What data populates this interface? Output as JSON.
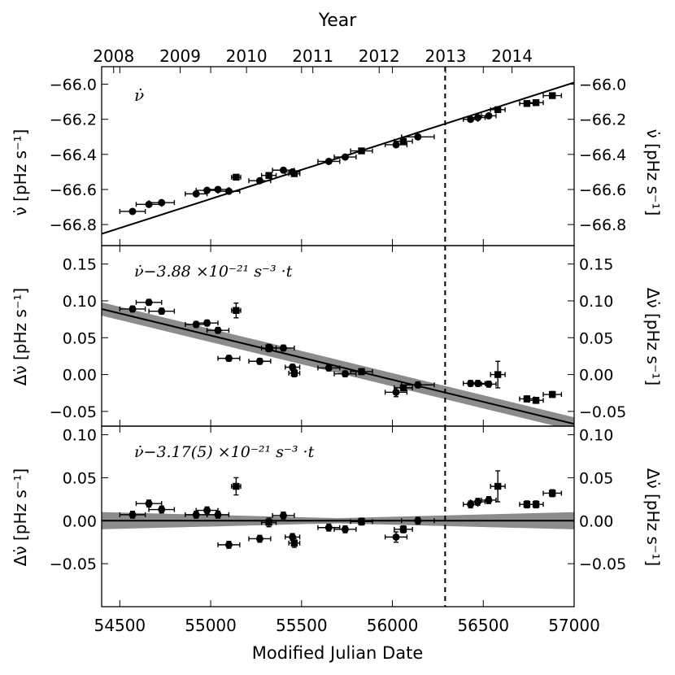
{
  "chart_data": {
    "type": "scatter",
    "top_axis": {
      "label": "Year",
      "tick_labels": [
        "2008",
        "2009",
        "2010",
        "2011",
        "2012",
        "2013",
        "2014"
      ],
      "tick_mjd": [
        54466,
        54832,
        55197,
        55562,
        55927,
        56293,
        56658
      ]
    },
    "x_axis": {
      "label": "Modified Julian Date",
      "range": [
        54400,
        57000
      ],
      "ticks": [
        54500,
        55000,
        55500,
        56000,
        56500,
        57000
      ]
    },
    "vertical_line_mjd": 56290,
    "panels": [
      {
        "name": "nu-dot",
        "annotation": "ν̇",
        "ylabel_left": "ν̇ [pHz s⁻¹]",
        "ylabel_right": "ν̇ [pHz s⁻¹]",
        "ylim": [
          -66.92,
          -65.9
        ],
        "yticks": [
          -66.8,
          -66.6,
          -66.4,
          -66.2,
          -66.0
        ],
        "tick_labels": [
          "−66.8",
          "−66.6",
          "−66.4",
          "−66.2",
          "−66.0"
        ],
        "fit_line": [
          [
            54400,
            -66.853
          ],
          [
            57000,
            -65.99
          ]
        ],
        "band": null,
        "points": [
          {
            "x": 54570,
            "y": -66.725,
            "xerr": 70,
            "yerr": 0.008,
            "m": "o"
          },
          {
            "x": 54660,
            "y": -66.685,
            "xerr": 70,
            "yerr": 0.008,
            "m": "o"
          },
          {
            "x": 54730,
            "y": -66.675,
            "xerr": 70,
            "yerr": 0.008,
            "m": "o"
          },
          {
            "x": 54920,
            "y": -66.625,
            "xerr": 60,
            "yerr": 0.008,
            "m": "o"
          },
          {
            "x": 54980,
            "y": -66.605,
            "xerr": 60,
            "yerr": 0.008,
            "m": "o"
          },
          {
            "x": 55040,
            "y": -66.6,
            "xerr": 60,
            "yerr": 0.008,
            "m": "o"
          },
          {
            "x": 55100,
            "y": -66.61,
            "xerr": 60,
            "yerr": 0.008,
            "m": "o"
          },
          {
            "x": 55140,
            "y": -66.53,
            "xerr": 25,
            "yerr": 0.008,
            "m": "s"
          },
          {
            "x": 55270,
            "y": -66.55,
            "xerr": 60,
            "yerr": 0.008,
            "m": "o"
          },
          {
            "x": 55320,
            "y": -66.52,
            "xerr": 40,
            "yerr": 0.008,
            "m": "s"
          },
          {
            "x": 55400,
            "y": -66.49,
            "xerr": 60,
            "yerr": 0.008,
            "m": "o"
          },
          {
            "x": 55450,
            "y": -66.5,
            "xerr": 40,
            "yerr": 0.008,
            "m": "o"
          },
          {
            "x": 55460,
            "y": -66.51,
            "xerr": 30,
            "yerr": 0.008,
            "m": "s"
          },
          {
            "x": 55650,
            "y": -66.44,
            "xerr": 60,
            "yerr": 0.008,
            "m": "o"
          },
          {
            "x": 55740,
            "y": -66.415,
            "xerr": 60,
            "yerr": 0.008,
            "m": "o"
          },
          {
            "x": 55830,
            "y": -66.38,
            "xerr": 60,
            "yerr": 0.008,
            "m": "s"
          },
          {
            "x": 56020,
            "y": -66.345,
            "xerr": 60,
            "yerr": 0.01,
            "m": "o"
          },
          {
            "x": 56060,
            "y": -66.325,
            "xerr": 50,
            "yerr": 0.008,
            "m": "s"
          },
          {
            "x": 56140,
            "y": -66.3,
            "xerr": 90,
            "yerr": 0.008,
            "m": "o"
          },
          {
            "x": 56430,
            "y": -66.2,
            "xerr": 40,
            "yerr": 0.008,
            "m": "o"
          },
          {
            "x": 56470,
            "y": -66.19,
            "xerr": 40,
            "yerr": 0.008,
            "m": "o"
          },
          {
            "x": 56530,
            "y": -66.18,
            "xerr": 40,
            "yerr": 0.008,
            "m": "o"
          },
          {
            "x": 56580,
            "y": -66.145,
            "xerr": 40,
            "yerr": 0.015,
            "m": "s"
          },
          {
            "x": 56740,
            "y": -66.11,
            "xerr": 40,
            "yerr": 0.008,
            "m": "s"
          },
          {
            "x": 56790,
            "y": -66.105,
            "xerr": 40,
            "yerr": 0.008,
            "m": "s"
          },
          {
            "x": 56880,
            "y": -66.065,
            "xerr": 50,
            "yerr": 0.008,
            "m": "s"
          }
        ]
      },
      {
        "name": "delta-nu-dot-fixed",
        "annotation": "ν̇−3.88 ×10⁻²¹ s⁻³ ·t",
        "ylabel_left": "Δν̇ [pHz s⁻¹]",
        "ylabel_right": "Δν̇ [pHz s⁻¹]",
        "ylim": [
          -0.07,
          0.175
        ],
        "yticks": [
          -0.05,
          0.0,
          0.05,
          0.1,
          0.15
        ],
        "tick_labels": [
          "−0.05",
          "0.00",
          "0.05",
          "0.10",
          "0.15"
        ],
        "fit_line": [
          [
            54400,
            0.089
          ],
          [
            57000,
            -0.067
          ]
        ],
        "band": {
          "x": [
            54400,
            57000
          ],
          "upper": [
            0.098,
            -0.058
          ],
          "lower": [
            0.08,
            -0.076
          ]
        },
        "points": [
          {
            "x": 54570,
            "y": 0.089,
            "xerr": 70,
            "yerr": 0.004,
            "m": "o"
          },
          {
            "x": 54660,
            "y": 0.098,
            "xerr": 70,
            "yerr": 0.004,
            "m": "o"
          },
          {
            "x": 54730,
            "y": 0.086,
            "xerr": 70,
            "yerr": 0.004,
            "m": "o"
          },
          {
            "x": 54920,
            "y": 0.068,
            "xerr": 60,
            "yerr": 0.004,
            "m": "o"
          },
          {
            "x": 54980,
            "y": 0.07,
            "xerr": 60,
            "yerr": 0.004,
            "m": "o"
          },
          {
            "x": 55040,
            "y": 0.06,
            "xerr": 60,
            "yerr": 0.004,
            "m": "o"
          },
          {
            "x": 55100,
            "y": 0.022,
            "xerr": 60,
            "yerr": 0.004,
            "m": "o"
          },
          {
            "x": 55140,
            "y": 0.087,
            "xerr": 25,
            "yerr": 0.01,
            "m": "s"
          },
          {
            "x": 55270,
            "y": 0.018,
            "xerr": 60,
            "yerr": 0.004,
            "m": "o"
          },
          {
            "x": 55320,
            "y": 0.036,
            "xerr": 40,
            "yerr": 0.005,
            "m": "s"
          },
          {
            "x": 55400,
            "y": 0.036,
            "xerr": 60,
            "yerr": 0.004,
            "m": "o"
          },
          {
            "x": 55450,
            "y": 0.01,
            "xerr": 40,
            "yerr": 0.004,
            "m": "o"
          },
          {
            "x": 55460,
            "y": 0.002,
            "xerr": 30,
            "yerr": 0.005,
            "m": "s"
          },
          {
            "x": 55650,
            "y": 0.009,
            "xerr": 60,
            "yerr": 0.004,
            "m": "o"
          },
          {
            "x": 55740,
            "y": 0.001,
            "xerr": 60,
            "yerr": 0.004,
            "m": "o"
          },
          {
            "x": 55830,
            "y": 0.004,
            "xerr": 60,
            "yerr": 0.004,
            "m": "s"
          },
          {
            "x": 56020,
            "y": -0.024,
            "xerr": 60,
            "yerr": 0.006,
            "m": "o"
          },
          {
            "x": 56060,
            "y": -0.018,
            "xerr": 50,
            "yerr": 0.004,
            "m": "s"
          },
          {
            "x": 56140,
            "y": -0.014,
            "xerr": 90,
            "yerr": 0.004,
            "m": "o"
          },
          {
            "x": 56430,
            "y": -0.012,
            "xerr": 40,
            "yerr": 0.004,
            "m": "o"
          },
          {
            "x": 56470,
            "y": -0.012,
            "xerr": 40,
            "yerr": 0.004,
            "m": "o"
          },
          {
            "x": 56530,
            "y": -0.013,
            "xerr": 40,
            "yerr": 0.004,
            "m": "o"
          },
          {
            "x": 56580,
            "y": 0.0,
            "xerr": 40,
            "yerr": 0.018,
            "m": "s"
          },
          {
            "x": 56740,
            "y": -0.033,
            "xerr": 40,
            "yerr": 0.004,
            "m": "s"
          },
          {
            "x": 56790,
            "y": -0.035,
            "xerr": 40,
            "yerr": 0.004,
            "m": "s"
          },
          {
            "x": 56880,
            "y": -0.027,
            "xerr": 50,
            "yerr": 0.004,
            "m": "s"
          }
        ]
      },
      {
        "name": "delta-nu-dot-fitted",
        "annotation": "ν̇−3.17(5) ×10⁻²¹ s⁻³ ·t",
        "ylabel_left": "Δν̇ [pHz s⁻¹]",
        "ylabel_right": "Δν̇ [pHz s⁻¹]",
        "ylim": [
          -0.1,
          0.11
        ],
        "yticks": [
          -0.05,
          0.0,
          0.05,
          0.1
        ],
        "tick_labels": [
          "−0.05",
          "0.00",
          "0.05",
          "0.10"
        ],
        "fit_line": [
          [
            54400,
            0.0
          ],
          [
            57000,
            0.0
          ]
        ],
        "band": {
          "x": [
            54400,
            55700,
            57000
          ],
          "upper": [
            0.01,
            0.003,
            0.01
          ],
          "lower": [
            -0.01,
            -0.003,
            -0.01
          ]
        },
        "points": [
          {
            "x": 54570,
            "y": 0.007,
            "xerr": 70,
            "yerr": 0.004,
            "m": "o"
          },
          {
            "x": 54660,
            "y": 0.02,
            "xerr": 70,
            "yerr": 0.004,
            "m": "o"
          },
          {
            "x": 54730,
            "y": 0.013,
            "xerr": 70,
            "yerr": 0.004,
            "m": "o"
          },
          {
            "x": 54920,
            "y": 0.007,
            "xerr": 60,
            "yerr": 0.004,
            "m": "o"
          },
          {
            "x": 54980,
            "y": 0.012,
            "xerr": 60,
            "yerr": 0.004,
            "m": "o"
          },
          {
            "x": 55040,
            "y": 0.007,
            "xerr": 60,
            "yerr": 0.004,
            "m": "o"
          },
          {
            "x": 55100,
            "y": -0.028,
            "xerr": 60,
            "yerr": 0.004,
            "m": "o"
          },
          {
            "x": 55140,
            "y": 0.04,
            "xerr": 25,
            "yerr": 0.01,
            "m": "s"
          },
          {
            "x": 55270,
            "y": -0.021,
            "xerr": 60,
            "yerr": 0.004,
            "m": "o"
          },
          {
            "x": 55320,
            "y": -0.002,
            "xerr": 40,
            "yerr": 0.005,
            "m": "s"
          },
          {
            "x": 55400,
            "y": 0.006,
            "xerr": 60,
            "yerr": 0.004,
            "m": "o"
          },
          {
            "x": 55450,
            "y": -0.019,
            "xerr": 40,
            "yerr": 0.004,
            "m": "o"
          },
          {
            "x": 55460,
            "y": -0.026,
            "xerr": 30,
            "yerr": 0.005,
            "m": "s"
          },
          {
            "x": 55650,
            "y": -0.008,
            "xerr": 60,
            "yerr": 0.004,
            "m": "o"
          },
          {
            "x": 55740,
            "y": -0.01,
            "xerr": 60,
            "yerr": 0.004,
            "m": "o"
          },
          {
            "x": 55830,
            "y": -0.001,
            "xerr": 60,
            "yerr": 0.004,
            "m": "s"
          },
          {
            "x": 56020,
            "y": -0.019,
            "xerr": 60,
            "yerr": 0.006,
            "m": "o"
          },
          {
            "x": 56060,
            "y": -0.01,
            "xerr": 50,
            "yerr": 0.004,
            "m": "s"
          },
          {
            "x": 56140,
            "y": 0.0,
            "xerr": 90,
            "yerr": 0.004,
            "m": "o"
          },
          {
            "x": 56430,
            "y": 0.019,
            "xerr": 40,
            "yerr": 0.004,
            "m": "o"
          },
          {
            "x": 56470,
            "y": 0.022,
            "xerr": 40,
            "yerr": 0.004,
            "m": "o"
          },
          {
            "x": 56530,
            "y": 0.024,
            "xerr": 40,
            "yerr": 0.004,
            "m": "o"
          },
          {
            "x": 56580,
            "y": 0.04,
            "xerr": 40,
            "yerr": 0.018,
            "m": "s"
          },
          {
            "x": 56740,
            "y": 0.019,
            "xerr": 40,
            "yerr": 0.004,
            "m": "s"
          },
          {
            "x": 56790,
            "y": 0.019,
            "xerr": 40,
            "yerr": 0.004,
            "m": "s"
          },
          {
            "x": 56880,
            "y": 0.032,
            "xerr": 50,
            "yerr": 0.004,
            "m": "s"
          }
        ]
      }
    ]
  }
}
